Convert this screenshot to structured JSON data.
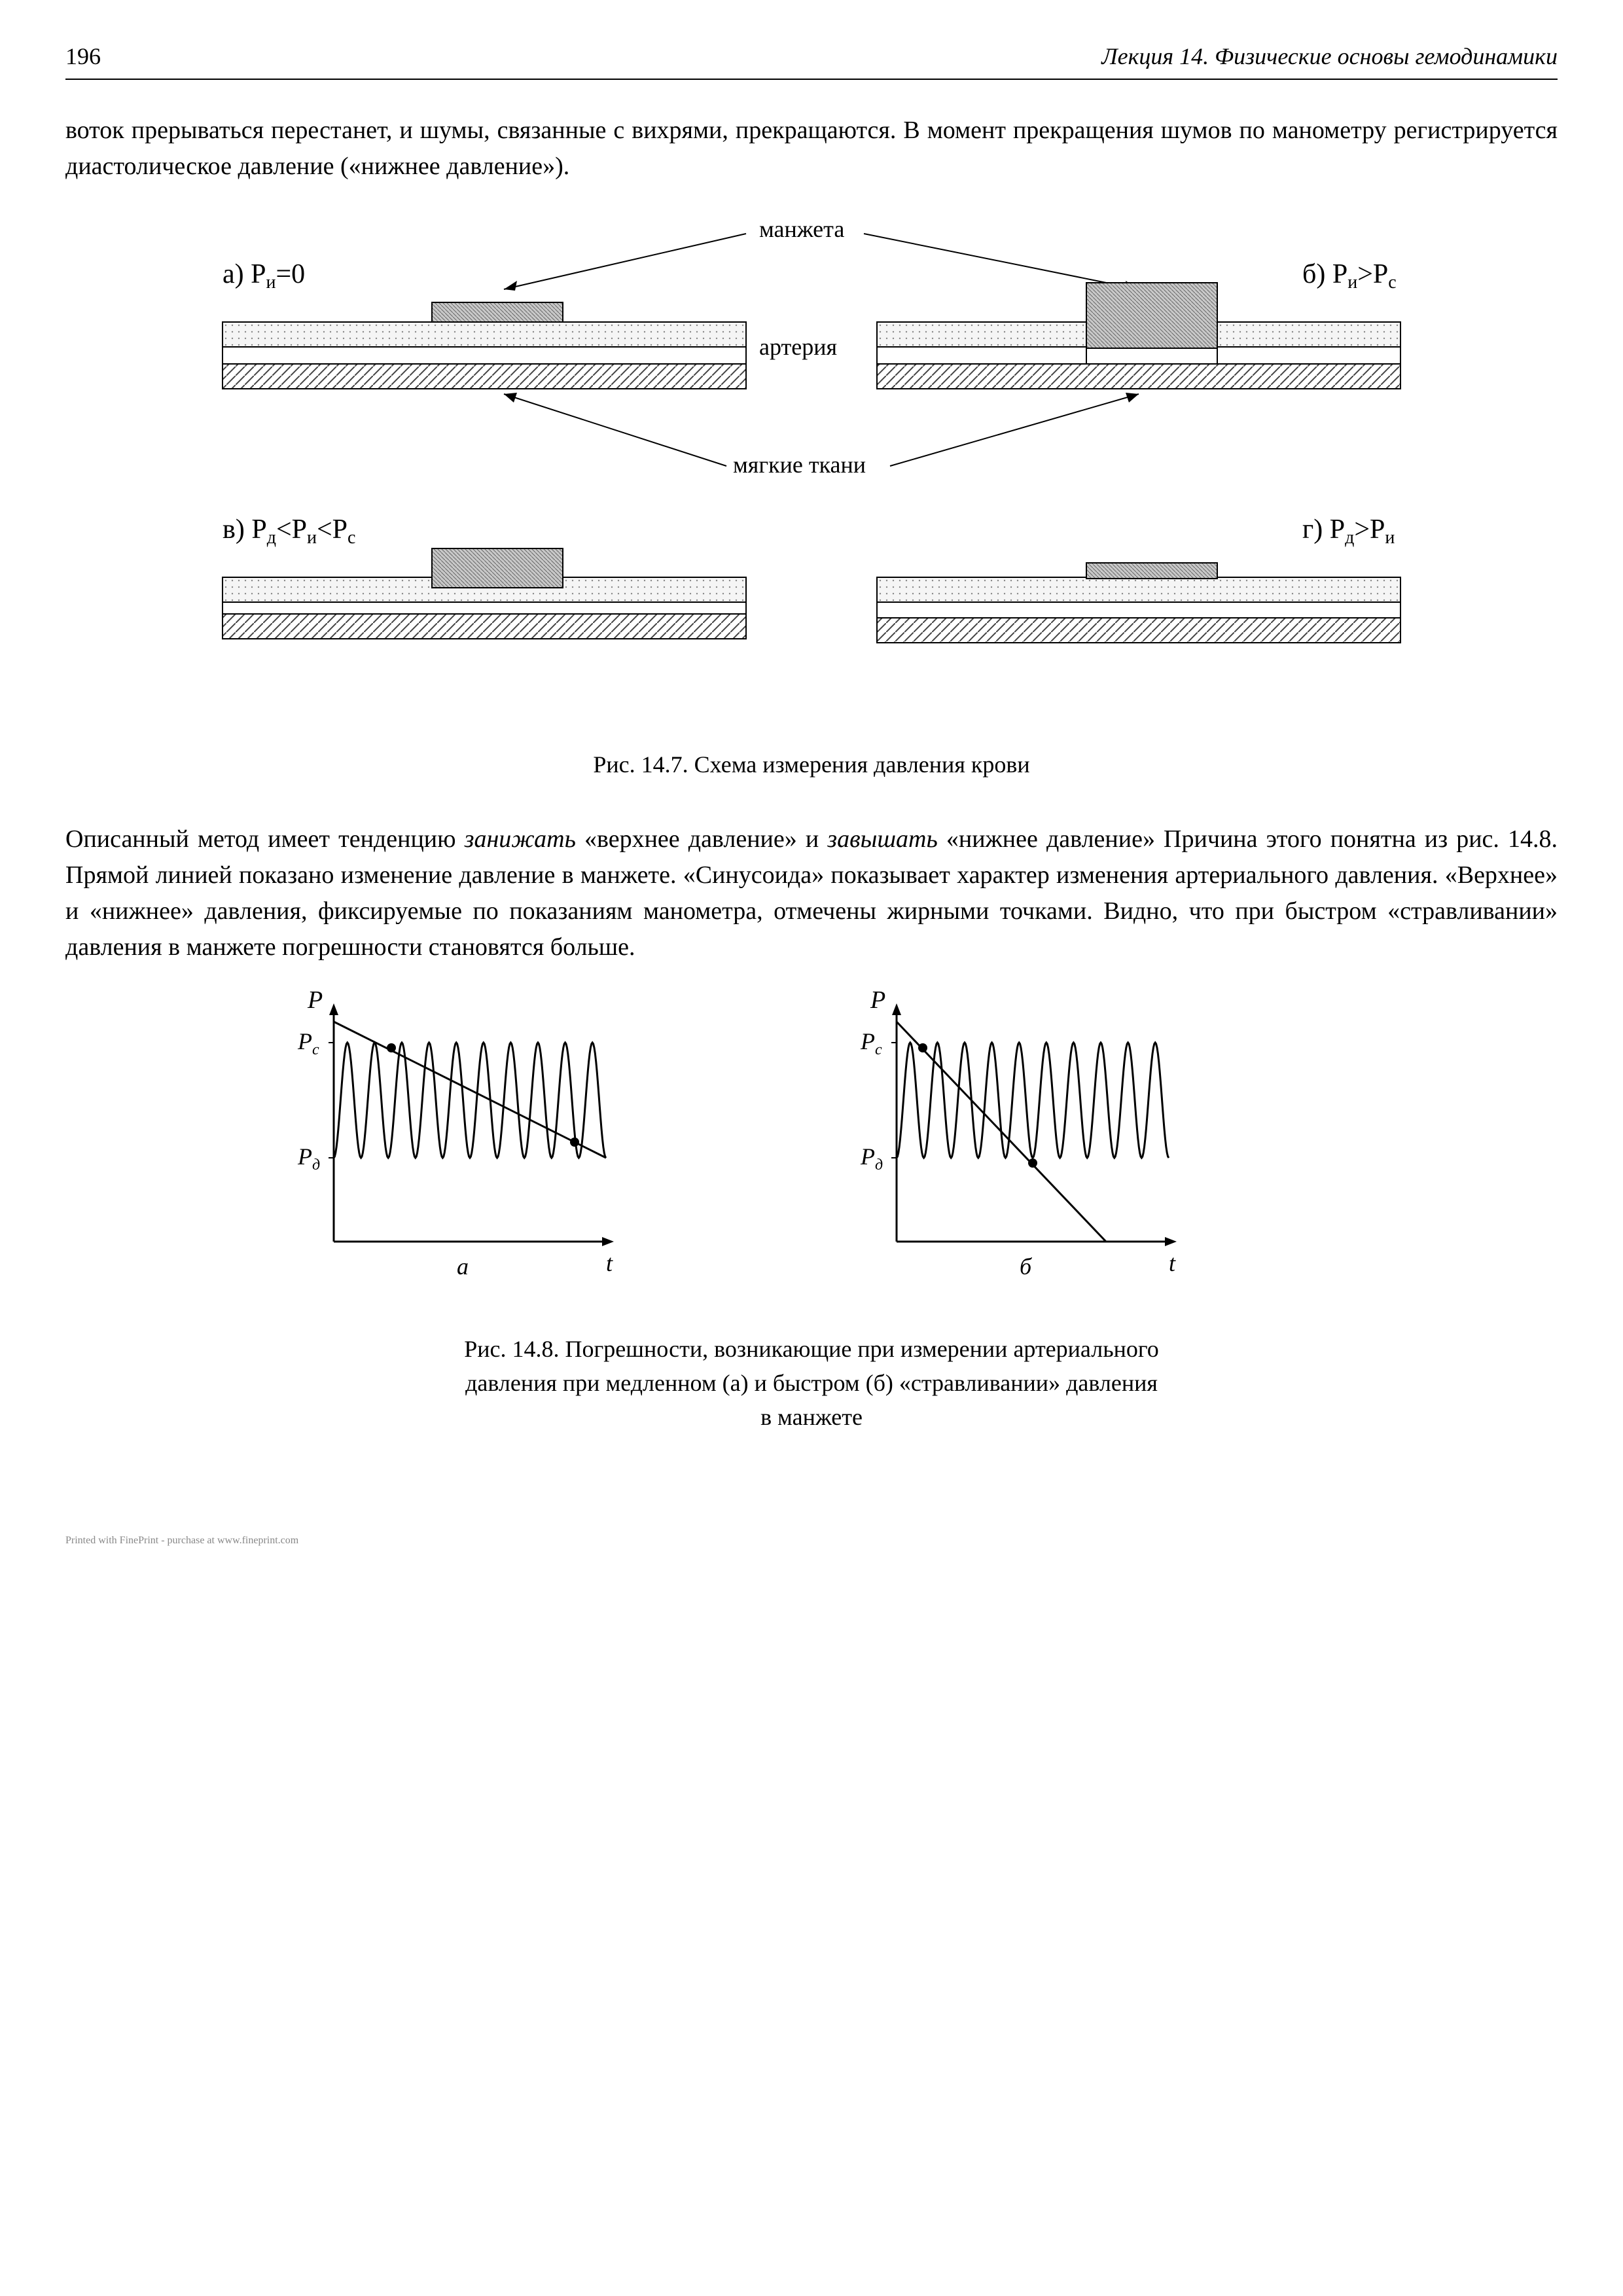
{
  "page": {
    "number": "196",
    "header": "Лекция 14. Физические основы гемодинамики"
  },
  "para1": "воток прерываться перестанет, и шумы, связанные с вихрями, прекращаются. В момент прекращения шумов по манометру регистрируется диастолическое давление («нижнее давление»).",
  "fig147": {
    "labels": {
      "manzheta": "манжета",
      "arteria": "артерия",
      "tkani": "мягкие ткани",
      "a": "а)  P",
      "a_rest": "=0",
      "b": "б)  P",
      "b_rest": ">P",
      "c": "в)  P",
      "c_mid": "<P",
      "c_end": "<P",
      "d": "г)  P",
      "d_rest": ">P",
      "sub_i": "и",
      "sub_c": "с",
      "sub_d": "д"
    },
    "caption": "Рис. 14.7. Схема измерения давления крови",
    "colors": {
      "outline": "#000000",
      "light_fill": "#f2f2f2",
      "dot_fill": "#e8e8e8",
      "hatch": "#808080",
      "cuff": "#808080"
    },
    "type": "diagram"
  },
  "para2_parts": {
    "p1": "Описанный метод имеет тенденцию ",
    "p2": "занижать",
    "p3": " «верхнее давление» и ",
    "p4": "завышать",
    "p5": " «нижнее давление» Причина этого понятна из рис. 14.8. Прямой линией показано изменение давление в манжете. «Синусоида» показывает характер изменения артериального давления. «Верхнее» и «нижнее» давления, фиксируемые по показаниям манометра, отмечены жирными точками. Видно, что при быстром «стравливании» давления в манжете погрешности становятся больше."
  },
  "fig148": {
    "type": "line",
    "axis_labels": {
      "P": "P",
      "Pc": "P",
      "Pd": "P",
      "t": "t",
      "a": "а",
      "b": "б",
      "sub_c": "с",
      "sub_d": "д"
    },
    "chart_a": {
      "xlim": [
        0,
        260
      ],
      "ylim": [
        0,
        220
      ],
      "line_start": [
        0,
        210
      ],
      "line_end": [
        260,
        80
      ],
      "sine_baseline": 135,
      "sine_amplitude": 55,
      "sine_cycles": 10,
      "dot_positions": [
        [
          55,
          185
        ],
        [
          230,
          95
        ]
      ],
      "line_width": 3,
      "sine_width": 3,
      "dot_radius": 7
    },
    "chart_b": {
      "xlim": [
        0,
        260
      ],
      "ylim": [
        0,
        220
      ],
      "line_start": [
        0,
        210
      ],
      "line_end": [
        200,
        0
      ],
      "sine_baseline": 135,
      "sine_amplitude": 55,
      "sine_cycles": 10,
      "dot_positions": [
        [
          25,
          185
        ],
        [
          130,
          75
        ]
      ],
      "line_width": 3,
      "sine_width": 3,
      "dot_radius": 7
    },
    "colors": {
      "axis": "#000000",
      "line": "#000000",
      "sine": "#000000",
      "dot": "#000000"
    },
    "caption_lines": [
      "Рис. 14.8. Погрешности, возникающие при измерении артериального",
      "давления при медленном (а) и быстром (б) «стравливании» давления",
      "в манжете"
    ]
  },
  "footer": "Printed with FinePrint - purchase at www.fineprint.com"
}
